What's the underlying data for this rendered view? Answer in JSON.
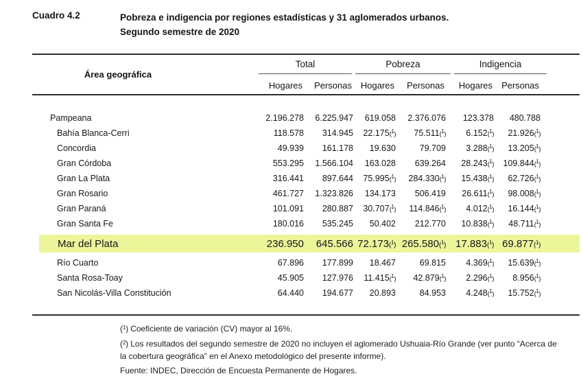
{
  "document": {
    "label": "Cuadro 4.2",
    "title_line1": "Pobreza e indigencia por regiones estadísticas y 31 aglomerados urbanos.",
    "title_line2": "Segundo semestre de 2020"
  },
  "table": {
    "area_header": "Área geográfica",
    "groups": [
      {
        "label": "Total"
      },
      {
        "label": "Pobreza"
      },
      {
        "label": "Indigencia"
      }
    ],
    "subheaders": [
      "Hogares",
      "Personas",
      "Hogares",
      "Personas",
      "Hogares",
      "Personas"
    ],
    "rows": [
      {
        "area": "Pampeana",
        "level": "region",
        "highlighted": false,
        "values": [
          "2.196.278",
          "6.225.947",
          "619.058",
          "2.376.076",
          "123.378",
          "480.788"
        ]
      },
      {
        "area": "Bahía Blanca-Cerri",
        "level": "aglomerado",
        "highlighted": false,
        "values": [
          "118.578",
          "314.945",
          "22.175 (1)",
          "75.511 (1)",
          "6.152 (1)",
          "21.926 (1)"
        ]
      },
      {
        "area": "Concordia",
        "level": "aglomerado",
        "highlighted": false,
        "values": [
          "49.939",
          "161.178",
          "19.630",
          "79.709",
          "3.288 (1)",
          "13.205 (1)"
        ]
      },
      {
        "area": "Gran Córdoba",
        "level": "aglomerado",
        "highlighted": false,
        "values": [
          "553.295",
          "1.566.104",
          "163.028",
          "639.264",
          "28.243 (1)",
          "109.844 (1)"
        ]
      },
      {
        "area": "Gran La Plata",
        "level": "aglomerado",
        "highlighted": false,
        "values": [
          "316.441",
          "897.644",
          "75.995 (1)",
          "284.330 (1)",
          "15.438 (1)",
          "62.726 (1)"
        ]
      },
      {
        "area": "Gran Rosario",
        "level": "aglomerado",
        "highlighted": false,
        "values": [
          "461.727",
          "1.323.826",
          "134.173",
          "506.419",
          "26.611 (1)",
          "98.008 (1)"
        ]
      },
      {
        "area": "Gran Paraná",
        "level": "aglomerado",
        "highlighted": false,
        "values": [
          "101.091",
          "280.887",
          "30.707 (1)",
          "114.846 (1)",
          "4.012 (1)",
          "16.144 (1)"
        ]
      },
      {
        "area": "Gran Santa Fe",
        "level": "aglomerado",
        "highlighted": false,
        "values": [
          "180.016",
          "535.245",
          "50.402",
          "212.770",
          "10.838 (1)",
          "48.711 (1)"
        ]
      },
      {
        "area": "Mar del Plata",
        "level": "aglomerado",
        "highlighted": true,
        "values": [
          "236.950",
          "645.566",
          "72.173 (1)",
          "265.580 (1)",
          "17.883 (1)",
          "69.877 (1)"
        ]
      },
      {
        "area": "Río Cuarto",
        "level": "aglomerado",
        "highlighted": false,
        "values": [
          "67.896",
          "177.899",
          "18.467",
          "69.815",
          "4.369 (1)",
          "15.639 (1)"
        ]
      },
      {
        "area": "Santa Rosa-Toay",
        "level": "aglomerado",
        "highlighted": false,
        "values": [
          "45.905",
          "127.976",
          "11.415 (1)",
          "42.879 (1)",
          "2.296 (1)",
          "8.956 (1)"
        ]
      },
      {
        "area": "San Nicolás-Villa Constitución",
        "level": "aglomerado",
        "highlighted": false,
        "values": [
          "64.440",
          "194.677",
          "20.893",
          "84.953",
          "4.248 (1)",
          "15.752 (1)"
        ]
      }
    ]
  },
  "footnotes": [
    {
      "sup": "1",
      "text": "Coeficiente de variación (CV) mayor al 16%."
    },
    {
      "sup": "2",
      "text": "Los resultados del segundo semestre de 2020 no incluyen el aglomerado Ushuaia-Río Grande (ver punto “Acerca de la cobertura geográfica” en el Anexo metodológico del presente informe)."
    }
  ],
  "source": "Fuente:  INDEC, Dirección de Encuesta Permanente de Hogares.",
  "colors": {
    "highlight": "#edf59b",
    "rule": "#2b2b2b",
    "text": "#111111"
  }
}
